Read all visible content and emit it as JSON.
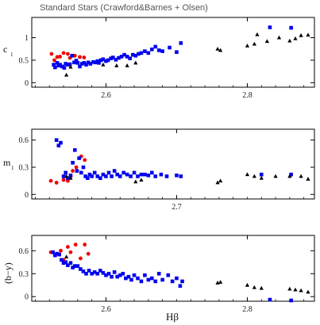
{
  "chart_data": [
    {
      "type": "scatter",
      "title": "Standard Stars (Crawford&Barnes + Olsen)",
      "ylabel_main": "c",
      "ylabel_sub": "1",
      "xlabel": "",
      "xlim": [
        2.495,
        2.895
      ],
      "ylim": [
        -0.1,
        1.45
      ],
      "xticks": [
        {
          "label": "2.6",
          "value": 2.6
        },
        {
          "label": "2.8",
          "value": 2.8
        }
      ],
      "yticks": [
        {
          "label": "1",
          "value": 1
        },
        {
          "label": "0.5",
          "value": 0.5
        },
        {
          "label": "0",
          "value": 0
        }
      ],
      "series": [
        {
          "color": "#ee0000",
          "marker": "circle",
          "points": [
            [
              2.523,
              0.64
            ],
            [
              2.527,
              0.5
            ],
            [
              2.531,
              0.57
            ],
            [
              2.535,
              0.58
            ],
            [
              2.54,
              0.66
            ],
            [
              2.546,
              0.64
            ],
            [
              2.549,
              0.55
            ],
            [
              2.556,
              0.6
            ],
            [
              2.563,
              0.57
            ],
            [
              2.569,
              0.56
            ]
          ]
        },
        {
          "color": "#0000ee",
          "marker": "square",
          "points": [
            [
              2.526,
              0.4
            ],
            [
              2.528,
              0.34
            ],
            [
              2.531,
              0.44
            ],
            [
              2.533,
              0.38
            ],
            [
              2.535,
              0.4
            ],
            [
              2.538,
              0.36
            ],
            [
              2.541,
              0.33
            ],
            [
              2.543,
              0.42
            ],
            [
              2.546,
              0.4
            ],
            [
              2.549,
              0.41
            ],
            [
              2.552,
              0.6
            ],
            [
              2.555,
              0.45
            ],
            [
              2.558,
              0.49
            ],
            [
              2.56,
              0.44
            ],
            [
              2.563,
              0.36
            ],
            [
              2.566,
              0.42
            ],
            [
              2.569,
              0.44
            ],
            [
              2.572,
              0.4
            ],
            [
              2.575,
              0.45
            ],
            [
              2.578,
              0.42
            ],
            [
              2.582,
              0.46
            ],
            [
              2.585,
              0.45
            ],
            [
              2.588,
              0.48
            ],
            [
              2.59,
              0.44
            ],
            [
              2.593,
              0.5
            ],
            [
              2.596,
              0.52
            ],
            [
              2.6,
              0.48
            ],
            [
              2.603,
              0.5
            ],
            [
              2.607,
              0.54
            ],
            [
              2.61,
              0.56
            ],
            [
              2.614,
              0.51
            ],
            [
              2.618,
              0.55
            ],
            [
              2.622,
              0.58
            ],
            [
              2.626,
              0.62
            ],
            [
              2.63,
              0.58
            ],
            [
              2.634,
              0.54
            ],
            [
              2.638,
              0.62
            ],
            [
              2.642,
              0.6
            ],
            [
              2.646,
              0.64
            ],
            [
              2.65,
              0.66
            ],
            [
              2.655,
              0.7
            ],
            [
              2.66,
              0.66
            ],
            [
              2.665,
              0.74
            ],
            [
              2.67,
              0.8
            ],
            [
              2.675,
              0.72
            ],
            [
              2.68,
              0.7
            ],
            [
              2.69,
              0.78
            ],
            [
              2.7,
              0.68
            ],
            [
              2.706,
              0.88
            ],
            [
              2.832,
              1.23
            ],
            [
              2.862,
              1.22
            ]
          ]
        },
        {
          "color": "#000000",
          "marker": "triangle",
          "points": [
            [
              2.544,
              0.17
            ],
            [
              2.55,
              0.35
            ],
            [
              2.596,
              0.4
            ],
            [
              2.615,
              0.38
            ],
            [
              2.63,
              0.38
            ],
            [
              2.642,
              0.44
            ],
            [
              2.758,
              0.75
            ],
            [
              2.762,
              0.72
            ],
            [
              2.8,
              0.82
            ],
            [
              2.81,
              0.86
            ],
            [
              2.814,
              1.07
            ],
            [
              2.828,
              0.92
            ],
            [
              2.845,
              1.0
            ],
            [
              2.86,
              0.93
            ],
            [
              2.868,
              0.98
            ],
            [
              2.876,
              1.05
            ],
            [
              2.886,
              1.06
            ]
          ]
        }
      ]
    },
    {
      "type": "scatter",
      "title": "",
      "ylabel_main": "m",
      "ylabel_sub": "1",
      "xlabel": "",
      "xlim": [
        2.495,
        2.895
      ],
      "ylim": [
        -0.05,
        0.72
      ],
      "xticks": [
        {
          "label": "2.7",
          "value": 2.7
        }
      ],
      "yticks": [
        {
          "label": "0.6",
          "value": 0.6
        },
        {
          "label": "0.3",
          "value": 0.3
        },
        {
          "label": "0",
          "value": 0
        }
      ],
      "series": [
        {
          "color": "#ee0000",
          "marker": "circle",
          "points": [
            [
              2.522,
              0.15
            ],
            [
              2.53,
              0.13
            ],
            [
              2.54,
              0.16
            ],
            [
              2.546,
              0.15
            ],
            [
              2.55,
              0.2
            ],
            [
              2.553,
              0.26
            ],
            [
              2.558,
              0.3
            ],
            [
              2.565,
              0.42
            ],
            [
              2.57,
              0.38
            ]
          ]
        },
        {
          "color": "#0000ee",
          "marker": "square",
          "points": [
            [
              2.53,
              0.6
            ],
            [
              2.533,
              0.54
            ],
            [
              2.536,
              0.57
            ],
            [
              2.54,
              0.2
            ],
            [
              2.543,
              0.24
            ],
            [
              2.546,
              0.18
            ],
            [
              2.55,
              0.21
            ],
            [
              2.553,
              0.35
            ],
            [
              2.556,
              0.49
            ],
            [
              2.559,
              0.26
            ],
            [
              2.562,
              0.4
            ],
            [
              2.565,
              0.24
            ],
            [
              2.568,
              0.3
            ],
            [
              2.571,
              0.2
            ],
            [
              2.574,
              0.18
            ],
            [
              2.577,
              0.22
            ],
            [
              2.58,
              0.2
            ],
            [
              2.584,
              0.24
            ],
            [
              2.588,
              0.2
            ],
            [
              2.592,
              0.18
            ],
            [
              2.596,
              0.22
            ],
            [
              2.6,
              0.2
            ],
            [
              2.604,
              0.24
            ],
            [
              2.608,
              0.2
            ],
            [
              2.612,
              0.26
            ],
            [
              2.616,
              0.22
            ],
            [
              2.62,
              0.2
            ],
            [
              2.625,
              0.24
            ],
            [
              2.63,
              0.22
            ],
            [
              2.635,
              0.2
            ],
            [
              2.64,
              0.24
            ],
            [
              2.645,
              0.2
            ],
            [
              2.65,
              0.22
            ],
            [
              2.655,
              0.22
            ],
            [
              2.66,
              0.21
            ],
            [
              2.665,
              0.24
            ],
            [
              2.67,
              0.2
            ],
            [
              2.678,
              0.22
            ],
            [
              2.686,
              0.2
            ],
            [
              2.7,
              0.21
            ],
            [
              2.706,
              0.2
            ],
            [
              2.82,
              0.22
            ],
            [
              2.862,
              0.22
            ]
          ]
        },
        {
          "color": "#000000",
          "marker": "triangle",
          "points": [
            [
              2.544,
              0.2
            ],
            [
              2.55,
              0.18
            ],
            [
              2.642,
              0.14
            ],
            [
              2.65,
              0.16
            ],
            [
              2.758,
              0.13
            ],
            [
              2.762,
              0.15
            ],
            [
              2.8,
              0.22
            ],
            [
              2.81,
              0.2
            ],
            [
              2.82,
              0.18
            ],
            [
              2.84,
              0.2
            ],
            [
              2.86,
              0.2
            ],
            [
              2.876,
              0.2
            ],
            [
              2.886,
              0.17
            ]
          ]
        }
      ]
    },
    {
      "type": "scatter",
      "title": "",
      "ylabel_main": "(b−y)",
      "ylabel_sub": "",
      "xlabel": "Hβ",
      "xlim": [
        2.495,
        2.895
      ],
      "ylim": [
        -0.06,
        0.8
      ],
      "xticks": [
        {
          "label": "2.6",
          "value": 2.6
        },
        {
          "label": "2.8",
          "value": 2.8
        }
      ],
      "yticks": [
        {
          "label": "0.6",
          "value": 0.6
        },
        {
          "label": "0.3",
          "value": 0.3
        },
        {
          "label": "0",
          "value": 0
        }
      ],
      "series": [
        {
          "color": "#ee0000",
          "marker": "circle",
          "points": [
            [
              2.522,
              0.58
            ],
            [
              2.53,
              0.56
            ],
            [
              2.536,
              0.6
            ],
            [
              2.54,
              0.48
            ],
            [
              2.546,
              0.65
            ],
            [
              2.55,
              0.58
            ],
            [
              2.557,
              0.68
            ],
            [
              2.564,
              0.5
            ],
            [
              2.57,
              0.68
            ],
            [
              2.575,
              0.56
            ]
          ]
        },
        {
          "color": "#0000ee",
          "marker": "square",
          "points": [
            [
              2.525,
              0.58
            ],
            [
              2.528,
              0.54
            ],
            [
              2.531,
              0.56
            ],
            [
              2.534,
              0.55
            ],
            [
              2.537,
              0.48
            ],
            [
              2.54,
              0.44
            ],
            [
              2.543,
              0.45
            ],
            [
              2.546,
              0.41
            ],
            [
              2.55,
              0.44
            ],
            [
              2.553,
              0.38
            ],
            [
              2.556,
              0.4
            ],
            [
              2.56,
              0.4
            ],
            [
              2.564,
              0.36
            ],
            [
              2.568,
              0.33
            ],
            [
              2.572,
              0.3
            ],
            [
              2.576,
              0.34
            ],
            [
              2.58,
              0.3
            ],
            [
              2.584,
              0.32
            ],
            [
              2.588,
              0.3
            ],
            [
              2.592,
              0.34
            ],
            [
              2.596,
              0.31
            ],
            [
              2.6,
              0.28
            ],
            [
              2.604,
              0.3
            ],
            [
              2.608,
              0.26
            ],
            [
              2.612,
              0.32
            ],
            [
              2.616,
              0.26
            ],
            [
              2.62,
              0.28
            ],
            [
              2.624,
              0.3
            ],
            [
              2.628,
              0.24
            ],
            [
              2.632,
              0.26
            ],
            [
              2.636,
              0.22
            ],
            [
              2.64,
              0.28
            ],
            [
              2.645,
              0.24
            ],
            [
              2.65,
              0.2
            ],
            [
              2.655,
              0.28
            ],
            [
              2.66,
              0.22
            ],
            [
              2.665,
              0.24
            ],
            [
              2.67,
              0.2
            ],
            [
              2.675,
              0.3
            ],
            [
              2.68,
              0.22
            ],
            [
              2.688,
              0.28
            ],
            [
              2.694,
              0.2
            ],
            [
              2.7,
              0.24
            ],
            [
              2.705,
              0.14
            ],
            [
              2.708,
              0.2
            ],
            [
              2.832,
              -0.04
            ],
            [
              2.862,
              -0.05
            ]
          ]
        },
        {
          "color": "#000000",
          "marker": "triangle",
          "points": [
            [
              2.544,
              0.52
            ],
            [
              2.758,
              0.18
            ],
            [
              2.762,
              0.19
            ],
            [
              2.8,
              0.15
            ],
            [
              2.81,
              0.12
            ],
            [
              2.82,
              0.11
            ],
            [
              2.86,
              0.1
            ],
            [
              2.868,
              0.09
            ],
            [
              2.876,
              0.08
            ],
            [
              2.886,
              0.06
            ]
          ]
        }
      ]
    }
  ]
}
